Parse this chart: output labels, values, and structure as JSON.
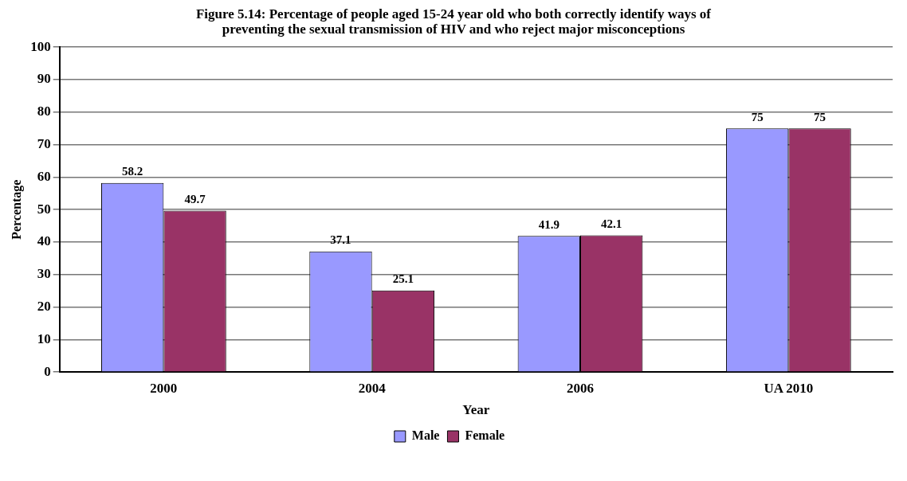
{
  "chart_data": {
    "type": "bar",
    "title": "Figure 5.14: Percentage of people aged 15-24 year old who both correctly identify ways of preventing the sexual transmission of HIV and who reject major misconceptions",
    "xlabel": "Year",
    "ylabel": "Percentage",
    "categories": [
      "2000",
      "2004",
      "2006",
      "UA 2010"
    ],
    "series": [
      {
        "name": "Male",
        "color": "#9999ff",
        "values": [
          58.2,
          37.1,
          41.9,
          75
        ]
      },
      {
        "name": "Female",
        "color": "#993366",
        "values": [
          49.7,
          25.1,
          42.1,
          75
        ]
      }
    ],
    "ylim": [
      0,
      100
    ],
    "yticks": [
      0,
      10,
      20,
      30,
      40,
      50,
      60,
      70,
      80,
      90,
      100
    ],
    "grid": "y",
    "legend": "bottom",
    "data_labels": true
  }
}
